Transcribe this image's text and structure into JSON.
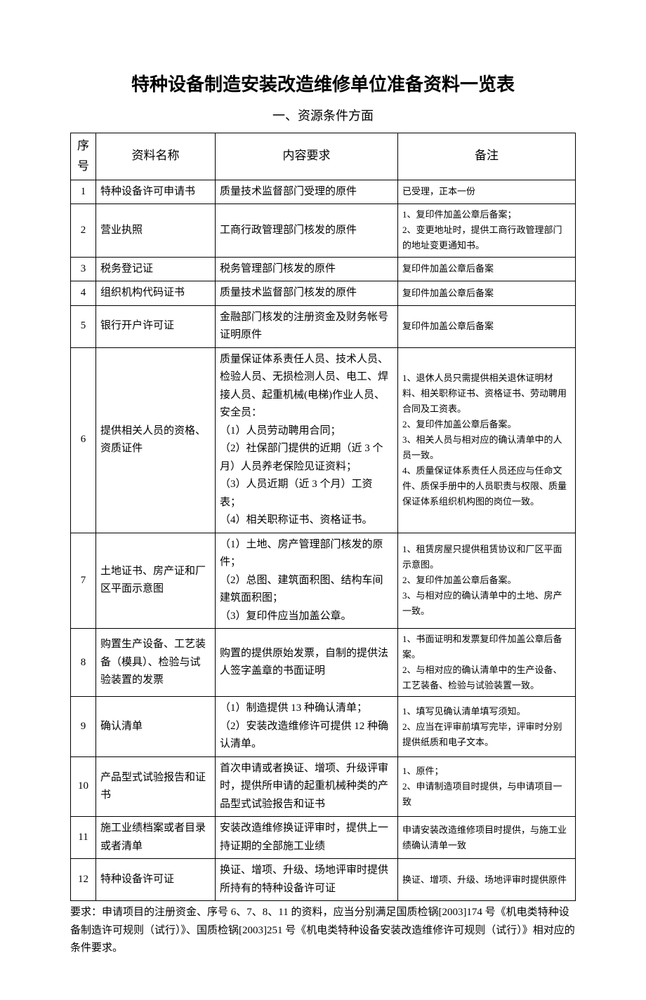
{
  "title": "特种设备制造安装改造维修单位准备资料一览表",
  "subtitle": "一、资源条件方面",
  "headers": {
    "seq": "序号",
    "name": "资料名称",
    "req": "内容要求",
    "note": "备注"
  },
  "rows": [
    {
      "seq": "1",
      "name": "特种设备许可申请书",
      "req": "质量技术监督部门受理的原件",
      "note": "已受理，正本一份"
    },
    {
      "seq": "2",
      "name": "营业执照",
      "req": "工商行政管理部门核发的原件",
      "note": "1、复印件加盖公章后备案；\n2、变更地址时，提供工商行政管理部门的地址变更通知书。"
    },
    {
      "seq": "3",
      "name": "税务登记证",
      "req": "税务管理部门核发的原件",
      "note": "复印件加盖公章后备案"
    },
    {
      "seq": "4",
      "name": "组织机构代码证书",
      "req": "质量技术监督部门核发的原件",
      "note": "复印件加盖公章后备案"
    },
    {
      "seq": "5",
      "name": "银行开户许可证",
      "req": "金融部门核发的注册资金及财务帐号证明原件",
      "note": "复印件加盖公章后备案"
    },
    {
      "seq": "6",
      "name": "提供相关人员的资格、资质证件",
      "req": "质量保证体系责任人员、技术人员、检验人员、无损检测人员、电工、焊接人员、起重机械(电梯)作业人员、安全员：\n（1）人员劳动聘用合同；\n（2）社保部门提供的近期（近 3 个月）人员养老保险见证资料；\n（3）人员近期（近 3 个月）工资表；\n（4）相关职称证书、资格证书。",
      "note": "1、退休人员只需提供相关退休证明材料、相关职称证书、资格证书、劳动聘用合同及工资表。\n2、复印件加盖公章后备案。\n3、相关人员与相对应的确认清单中的人员一致。\n4、质量保证体系责任人员还应与任命文件、质保手册中的人员职责与权限、质量保证体系组织机构图的岗位一致。"
    },
    {
      "seq": "7",
      "name": "土地证书、房产证和厂区平面示意图",
      "req": "（1）土地、房产管理部门核发的原件；\n（2）总图、建筑面积图、结构车间建筑面积图；\n（3）复印件应当加盖公章。",
      "note": "1、租赁房屋只提供租赁协议和厂区平面示意图。\n2、复印件加盖公章后备案。\n3、与相对应的确认清单中的土地、房产一致。"
    },
    {
      "seq": "8",
      "name": "购置生产设备、工艺装备（模具）、检验与试验装置的发票",
      "req": "购置的提供原始发票，自制的提供法人签字盖章的书面证明",
      "note": "1、书面证明和发票复印件加盖公章后备案。\n2、与相对应的确认清单中的生产设备、工艺装备、检验与试验装置一致。"
    },
    {
      "seq": "9",
      "name": "确认清单",
      "req": "（1）制造提供 13 种确认清单；\n（2）安装改造维修许可提供 12 种确认清单。",
      "note": "1、填写见确认清单填写须知。\n2、应当在评审前填写完毕，评审时分别提供纸质和电子文本。"
    },
    {
      "seq": "10",
      "name": "产品型式试验报告和证书",
      "req": "首次申请或者换证、增项、升级评审时，提供所申请的起重机械种类的产品型式试验报告和证书",
      "note": "1、原件；\n2、申请制造项目时提供，与申请项目一致"
    },
    {
      "seq": "11",
      "name": "施工业绩档案或者目录或者清单",
      "req": "安装改造维修换证评审时，提供上一持证期的全部施工业绩",
      "note": "申请安装改造维修项目时提供，与施工业绩确认清单一致"
    },
    {
      "seq": "12",
      "name": "特种设备许可证",
      "req": "换证、增项、升级、场地评审时提供所持有的特种设备许可证",
      "note": "换证、增项、升级、场地评审时提供原件"
    }
  ],
  "footnote": "要求：申请项目的注册资金、序号 6、7、8、11 的资料，应当分别满足国质检锅[2003]174 号《机电类特种设备制造许可规则（试行）》、国质检锅[2003]251 号《机电类特种设备安装改造维修许可规则（试行）》相对应的条件要求。"
}
